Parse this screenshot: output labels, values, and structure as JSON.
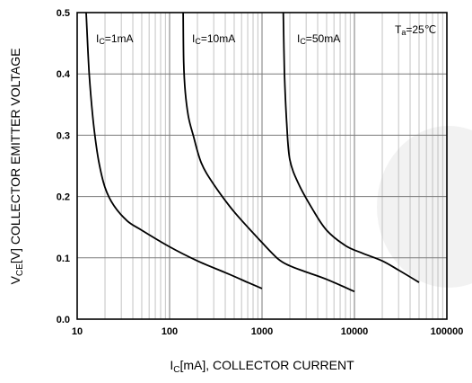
{
  "chart_data": {
    "type": "line",
    "x_scale": "log",
    "xlim": [
      10,
      100000
    ],
    "ylim": [
      0,
      0.5
    ],
    "grid": true,
    "xticks": [
      "10",
      "100",
      "1000",
      "10000",
      "100000"
    ],
    "yticks": [
      "0.0",
      "0.1",
      "0.2",
      "0.3",
      "0.4",
      "0.5"
    ],
    "xlabel": {
      "pre": "I",
      "sub": "C",
      "post": "[mA], COLLECTOR CURRENT"
    },
    "ylabel": {
      "pre": "V",
      "sub": "CE",
      "post": "[V] COLLECTOR EMITTER VOLTAGE"
    },
    "condition": {
      "pre": "T",
      "sub": "a",
      "post": "=25℃"
    },
    "series": [
      {
        "label": {
          "pre": "I",
          "sub": "C",
          "post": "=1mA"
        },
        "points": [
          [
            12.5,
            0.5
          ],
          [
            13.5,
            0.4
          ],
          [
            15,
            0.32
          ],
          [
            17,
            0.26
          ],
          [
            20,
            0.215
          ],
          [
            25,
            0.185
          ],
          [
            35,
            0.16
          ],
          [
            50,
            0.145
          ],
          [
            100,
            0.118
          ],
          [
            200,
            0.095
          ],
          [
            400,
            0.076
          ],
          [
            700,
            0.06
          ],
          [
            1000,
            0.05
          ]
        ]
      },
      {
        "label": {
          "pre": "I",
          "sub": "C",
          "post": "=10mA"
        },
        "points": [
          [
            140,
            0.5
          ],
          [
            142,
            0.42
          ],
          [
            148,
            0.37
          ],
          [
            160,
            0.33
          ],
          [
            180,
            0.3
          ],
          [
            220,
            0.255
          ],
          [
            300,
            0.22
          ],
          [
            500,
            0.175
          ],
          [
            1000,
            0.125
          ],
          [
            1500,
            0.098
          ],
          [
            2000,
            0.087
          ],
          [
            3000,
            0.077
          ],
          [
            5000,
            0.065
          ],
          [
            10000,
            0.045
          ]
        ]
      },
      {
        "label": {
          "pre": "I",
          "sub": "C",
          "post": "=50mA"
        },
        "points": [
          [
            1700,
            0.5
          ],
          [
            1750,
            0.4
          ],
          [
            1850,
            0.32
          ],
          [
            2000,
            0.26
          ],
          [
            2500,
            0.22
          ],
          [
            3500,
            0.18
          ],
          [
            5000,
            0.145
          ],
          [
            8000,
            0.12
          ],
          [
            12000,
            0.108
          ],
          [
            20000,
            0.095
          ],
          [
            30000,
            0.08
          ],
          [
            50000,
            0.06
          ]
        ]
      }
    ]
  }
}
